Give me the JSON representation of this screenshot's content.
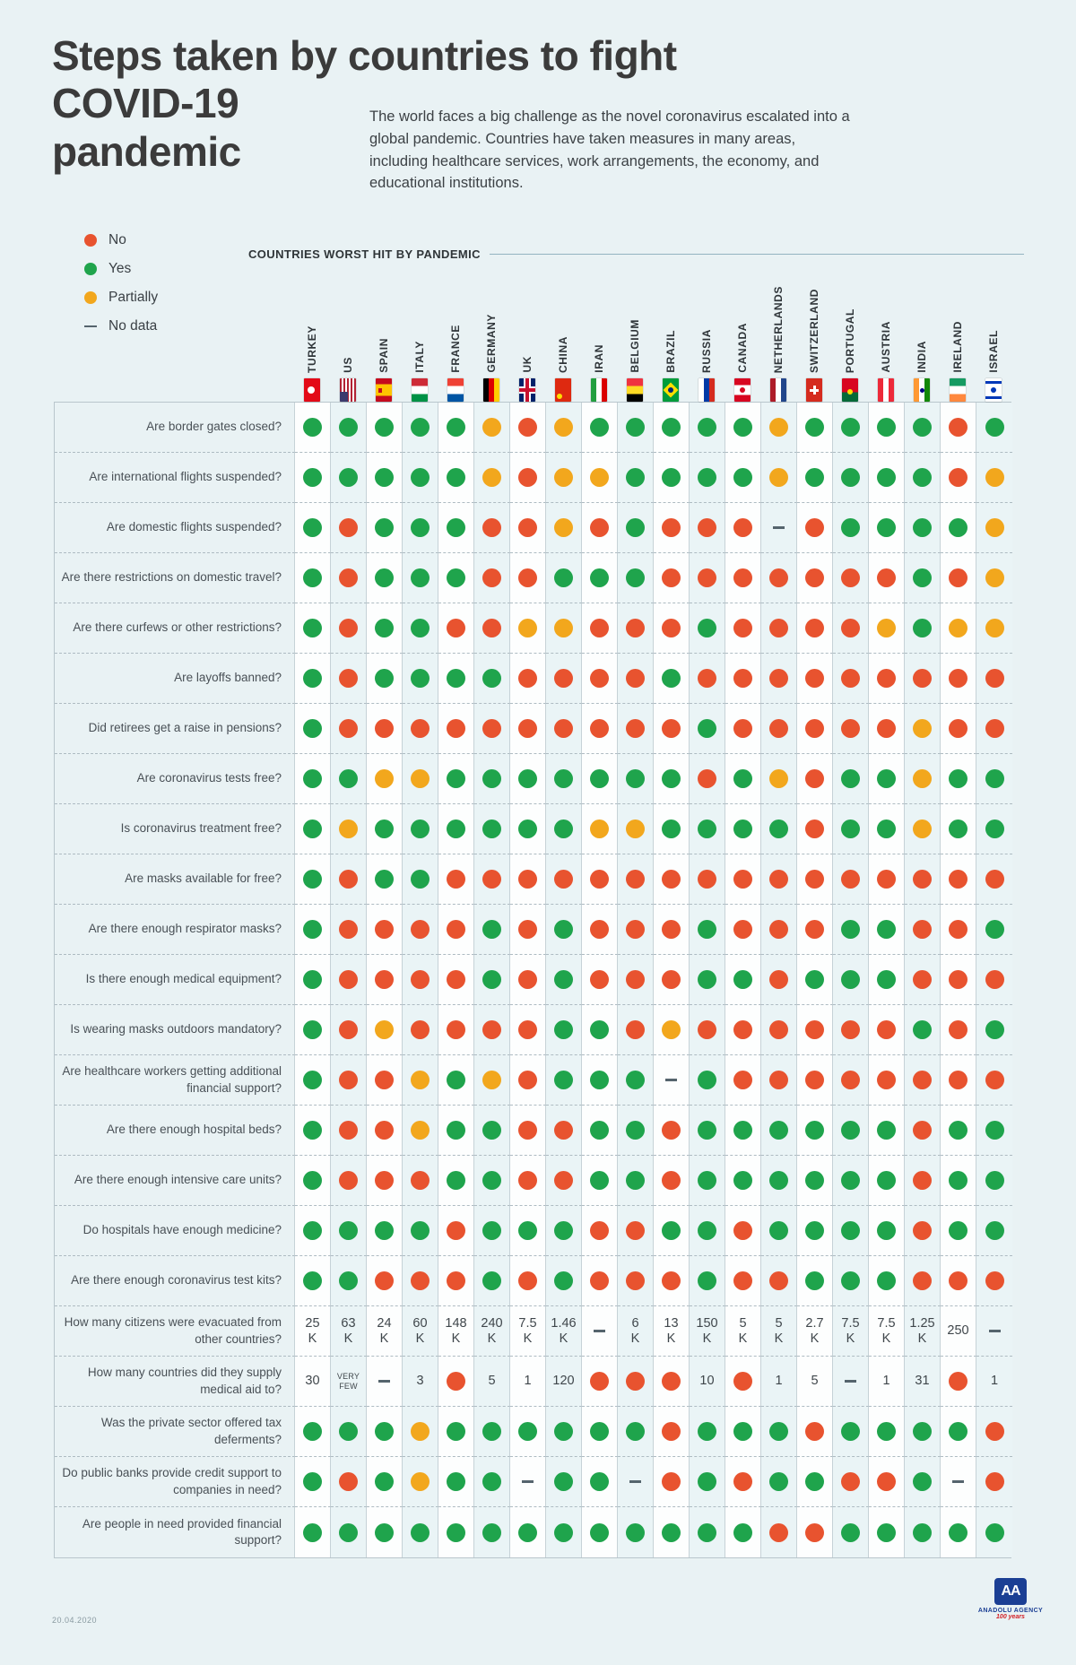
{
  "title_lines": [
    "Steps taken by countries to fight",
    "COVID-19",
    "pandemic"
  ],
  "intro": "The world faces a big challenge as the novel coronavirus escalated into a global pandemic. Countries have taken measures in many areas, including healthcare services, work arrangements, the economy, and educational institutions.",
  "countries_header": "COUNTRIES WORST HIT BY PANDEMIC",
  "legend": [
    {
      "label": "No",
      "code": "N"
    },
    {
      "label": "Yes",
      "code": "Y"
    },
    {
      "label": "Partially",
      "code": "P"
    },
    {
      "label": "No data",
      "code": "D"
    }
  ],
  "colors": {
    "yes": "#1fa44c",
    "no": "#e8532f",
    "partially": "#f2a71d",
    "nodata": "#55646d",
    "accent_blue": "#1b3f94",
    "accent_red": "#d21f26"
  },
  "date": "20.04.2020",
  "logo": {
    "mark": "AA",
    "name": "ANADOLU AGENCY",
    "years": "100 years"
  },
  "chart_data": {
    "type": "table",
    "value_codes": {
      "Y": "Yes",
      "N": "No",
      "P": "Partially",
      "D": "No data"
    },
    "columns": [
      {
        "name": "TURKEY",
        "flag": "turkey"
      },
      {
        "name": "US",
        "flag": "us"
      },
      {
        "name": "SPAIN",
        "flag": "spain"
      },
      {
        "name": "ITALY",
        "flag": "italy"
      },
      {
        "name": "FRANCE",
        "flag": "france"
      },
      {
        "name": "GERMANY",
        "flag": "germany"
      },
      {
        "name": "UK",
        "flag": "uk"
      },
      {
        "name": "CHINA",
        "flag": "china"
      },
      {
        "name": "IRAN",
        "flag": "iran"
      },
      {
        "name": "BELGIUM",
        "flag": "belgium"
      },
      {
        "name": "BRAZIL",
        "flag": "brazil"
      },
      {
        "name": "RUSSIA",
        "flag": "russia"
      },
      {
        "name": "CANADA",
        "flag": "canada"
      },
      {
        "name": "NETHERLANDS",
        "flag": "netherlands"
      },
      {
        "name": "SWITZERLAND",
        "flag": "switzerland"
      },
      {
        "name": "PORTUGAL",
        "flag": "portugal"
      },
      {
        "name": "AUSTRIA",
        "flag": "austria"
      },
      {
        "name": "INDIA",
        "flag": "india"
      },
      {
        "name": "IRELAND",
        "flag": "ireland"
      },
      {
        "name": "ISRAEL",
        "flag": "israel"
      }
    ],
    "rows": [
      {
        "question": "Are border gates closed?",
        "values": [
          "Y",
          "Y",
          "Y",
          "Y",
          "Y",
          "P",
          "N",
          "P",
          "Y",
          "Y",
          "Y",
          "Y",
          "Y",
          "P",
          "Y",
          "Y",
          "Y",
          "Y",
          "N",
          "Y"
        ]
      },
      {
        "question": "Are international flights suspended?",
        "values": [
          "Y",
          "Y",
          "Y",
          "Y",
          "Y",
          "P",
          "N",
          "P",
          "P",
          "Y",
          "Y",
          "Y",
          "Y",
          "P",
          "Y",
          "Y",
          "Y",
          "Y",
          "N",
          "P"
        ]
      },
      {
        "question": "Are domestic flights suspended?",
        "values": [
          "Y",
          "N",
          "Y",
          "Y",
          "Y",
          "N",
          "N",
          "P",
          "N",
          "Y",
          "N",
          "N",
          "N",
          "D",
          "N",
          "Y",
          "Y",
          "Y",
          "Y",
          "P"
        ]
      },
      {
        "question": "Are there restrictions on domestic travel?",
        "values": [
          "Y",
          "N",
          "Y",
          "Y",
          "Y",
          "N",
          "N",
          "Y",
          "Y",
          "Y",
          "N",
          "N",
          "N",
          "N",
          "N",
          "N",
          "N",
          "Y",
          "N",
          "P"
        ]
      },
      {
        "question": "Are there curfews or other restrictions?",
        "values": [
          "Y",
          "N",
          "Y",
          "Y",
          "N",
          "N",
          "P",
          "P",
          "N",
          "N",
          "N",
          "Y",
          "N",
          "N",
          "N",
          "N",
          "P",
          "Y",
          "P",
          "P"
        ]
      },
      {
        "question": "Are layoffs banned?",
        "values": [
          "Y",
          "N",
          "Y",
          "Y",
          "Y",
          "Y",
          "N",
          "N",
          "N",
          "N",
          "Y",
          "N",
          "N",
          "N",
          "N",
          "N",
          "N",
          "N",
          "N",
          "N"
        ]
      },
      {
        "question": "Did retirees get a raise in pensions?",
        "values": [
          "Y",
          "N",
          "N",
          "N",
          "N",
          "N",
          "N",
          "N",
          "N",
          "N",
          "N",
          "Y",
          "N",
          "N",
          "N",
          "N",
          "N",
          "P",
          "N",
          "N"
        ]
      },
      {
        "question": "Are coronavirus tests free?",
        "values": [
          "Y",
          "Y",
          "P",
          "P",
          "Y",
          "Y",
          "Y",
          "Y",
          "Y",
          "Y",
          "Y",
          "N",
          "Y",
          "P",
          "N",
          "Y",
          "Y",
          "P",
          "Y",
          "Y"
        ]
      },
      {
        "question": "Is coronavirus treatment free?",
        "values": [
          "Y",
          "P",
          "Y",
          "Y",
          "Y",
          "Y",
          "Y",
          "Y",
          "P",
          "P",
          "Y",
          "Y",
          "Y",
          "Y",
          "N",
          "Y",
          "Y",
          "P",
          "Y",
          "Y"
        ]
      },
      {
        "question": "Are masks available for free?",
        "values": [
          "Y",
          "N",
          "Y",
          "Y",
          "N",
          "N",
          "N",
          "N",
          "N",
          "N",
          "N",
          "N",
          "N",
          "N",
          "N",
          "N",
          "N",
          "N",
          "N",
          "N"
        ]
      },
      {
        "question": "Are there enough respirator masks?",
        "values": [
          "Y",
          "N",
          "N",
          "N",
          "N",
          "Y",
          "N",
          "Y",
          "N",
          "N",
          "N",
          "Y",
          "N",
          "N",
          "N",
          "Y",
          "Y",
          "N",
          "N",
          "Y"
        ]
      },
      {
        "question": "Is there enough medical equipment?",
        "values": [
          "Y",
          "N",
          "N",
          "N",
          "N",
          "Y",
          "N",
          "Y",
          "N",
          "N",
          "N",
          "Y",
          "Y",
          "N",
          "Y",
          "Y",
          "Y",
          "N",
          "N",
          "N"
        ]
      },
      {
        "question": "Is wearing masks outdoors mandatory?",
        "values": [
          "Y",
          "N",
          "P",
          "N",
          "N",
          "N",
          "N",
          "Y",
          "Y",
          "N",
          "P",
          "N",
          "N",
          "N",
          "N",
          "N",
          "N",
          "Y",
          "N",
          "Y"
        ]
      },
      {
        "question": "Are healthcare workers getting additional financial support?",
        "values": [
          "Y",
          "N",
          "N",
          "P",
          "Y",
          "P",
          "N",
          "Y",
          "Y",
          "Y",
          "D",
          "Y",
          "N",
          "N",
          "N",
          "N",
          "N",
          "N",
          "N",
          "N"
        ]
      },
      {
        "question": "Are there enough hospital beds?",
        "values": [
          "Y",
          "N",
          "N",
          "P",
          "Y",
          "Y",
          "N",
          "N",
          "Y",
          "Y",
          "N",
          "Y",
          "Y",
          "Y",
          "Y",
          "Y",
          "Y",
          "N",
          "Y",
          "Y"
        ]
      },
      {
        "question": "Are there enough intensive care units?",
        "values": [
          "Y",
          "N",
          "N",
          "N",
          "Y",
          "Y",
          "N",
          "N",
          "Y",
          "Y",
          "N",
          "Y",
          "Y",
          "Y",
          "Y",
          "Y",
          "Y",
          "N",
          "Y",
          "Y"
        ]
      },
      {
        "question": "Do hospitals have enough medicine?",
        "values": [
          "Y",
          "Y",
          "Y",
          "Y",
          "N",
          "Y",
          "Y",
          "Y",
          "N",
          "N",
          "Y",
          "Y",
          "N",
          "Y",
          "Y",
          "Y",
          "Y",
          "N",
          "Y",
          "Y"
        ]
      },
      {
        "question": "Are there enough coronavirus test kits?",
        "values": [
          "Y",
          "Y",
          "N",
          "N",
          "N",
          "Y",
          "N",
          "Y",
          "N",
          "N",
          "N",
          "Y",
          "N",
          "N",
          "Y",
          "Y",
          "Y",
          "N",
          "N",
          "N"
        ]
      },
      {
        "question": "How many citizens were evacuated from other countries?",
        "values": [
          "25|K",
          "63|K",
          "24|K",
          "60|K",
          "148|K",
          "240|K",
          "7.5|K",
          "1.46|K",
          "D",
          "6|K",
          "13|K",
          "150|K",
          "5|K",
          "5|K",
          "2.7|K",
          "7.5|K",
          "7.5|K",
          "1.25|K",
          "250",
          "D"
        ]
      },
      {
        "question": "How many countries did they supply medical aid to?",
        "values": [
          "30",
          "VERY|FEW",
          "D",
          "3",
          "N",
          "5",
          "1",
          "120",
          "N",
          "N",
          "N",
          "10",
          "N",
          "1",
          "5",
          "D",
          "1",
          "31",
          "N",
          "1"
        ]
      },
      {
        "question": "Was the private sector offered tax deferments?",
        "values": [
          "Y",
          "Y",
          "Y",
          "P",
          "Y",
          "Y",
          "Y",
          "Y",
          "Y",
          "Y",
          "N",
          "Y",
          "Y",
          "Y",
          "N",
          "Y",
          "Y",
          "Y",
          "Y",
          "N"
        ]
      },
      {
        "question": "Do public banks provide credit support to companies in need?",
        "values": [
          "Y",
          "N",
          "Y",
          "P",
          "Y",
          "Y",
          "D",
          "Y",
          "Y",
          "D",
          "N",
          "Y",
          "N",
          "Y",
          "Y",
          "N",
          "N",
          "Y",
          "D",
          "N"
        ]
      },
      {
        "question": "Are people in need provided financial support?",
        "values": [
          "Y",
          "Y",
          "Y",
          "Y",
          "Y",
          "Y",
          "Y",
          "Y",
          "Y",
          "Y",
          "Y",
          "Y",
          "Y",
          "N",
          "N",
          "Y",
          "Y",
          "Y",
          "Y",
          "Y"
        ]
      }
    ]
  }
}
